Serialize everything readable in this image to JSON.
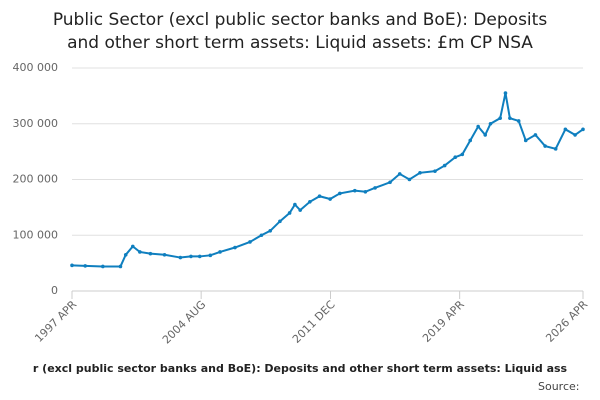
{
  "chart_data": {
    "type": "line",
    "title": [
      "Public Sector (excl public sector banks and BoE): Deposits",
      "and other short term assets: Liquid assets: £m CP NSA"
    ],
    "footer": "r (excl public sector banks and BoE): Deposits and other short term assets: Liquid ass",
    "source": "Source:",
    "x": [
      1997.25,
      1998.0,
      1999.0,
      2000.0,
      2000.3,
      2000.7,
      2001.1,
      2001.7,
      2002.5,
      2003.4,
      2004.0,
      2004.5,
      2005.1,
      2005.65,
      2006.5,
      2007.35,
      2008.0,
      2008.5,
      2009.05,
      2009.6,
      2009.9,
      2010.2,
      2010.75,
      2011.3,
      2011.9,
      2012.45,
      2013.3,
      2013.9,
      2014.45,
      2015.3,
      2015.85,
      2016.4,
      2017.0,
      2017.85,
      2018.4,
      2019.0,
      2019.4,
      2019.85,
      2020.3,
      2020.7,
      2021.0,
      2021.55,
      2021.85,
      2022.1,
      2022.6,
      2023.0,
      2023.55,
      2024.1,
      2024.7,
      2025.25,
      2025.8,
      2026.25
    ],
    "series": [
      {
        "name": "Liquid assets",
        "color": "#0f7fbf",
        "values": [
          46000,
          45000,
          44000,
          44000,
          65000,
          80000,
          70000,
          67000,
          65000,
          60000,
          62000,
          62000,
          64000,
          70000,
          78000,
          88000,
          100000,
          108000,
          125000,
          140000,
          155000,
          145000,
          160000,
          170000,
          165000,
          175000,
          180000,
          178000,
          185000,
          195000,
          210000,
          200000,
          212000,
          215000,
          225000,
          240000,
          245000,
          270000,
          295000,
          280000,
          300000,
          310000,
          355000,
          310000,
          305000,
          270000,
          280000,
          260000,
          255000,
          290000,
          280000,
          290000
        ]
      }
    ],
    "xlim": [
      1997.25,
      2026.25
    ],
    "xticks": [
      {
        "value": 1997.25,
        "label": "1997 APR"
      },
      {
        "value": 2004.58,
        "label": "2004 AUG"
      },
      {
        "value": 2011.92,
        "label": "2011 DEC"
      },
      {
        "value": 2019.25,
        "label": "2019 APR"
      },
      {
        "value": 2026.25,
        "label": "2026 APR"
      }
    ],
    "ylim": [
      0,
      400000
    ],
    "yticks": [
      0,
      {
        "value": 100000,
        "label": "100 000"
      },
      {
        "value": 200000,
        "label": "200 000"
      },
      {
        "value": 300000,
        "label": "300 000"
      },
      {
        "value": 400000,
        "label": "400 000"
      }
    ],
    "grid": true
  }
}
